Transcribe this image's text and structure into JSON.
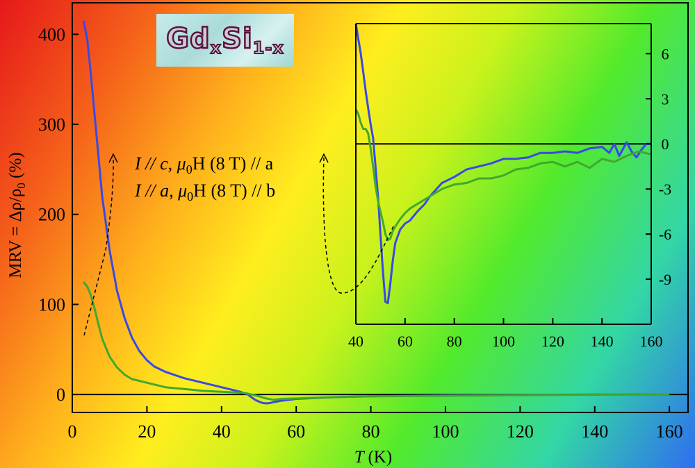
{
  "colors": {
    "blue": "#3a49e4",
    "green": "#41a82e",
    "axis": "#000000"
  },
  "logo": {
    "element": "GdxSi1-x",
    "main1": "Gd",
    "sub1": "x",
    "main2": "Si",
    "sub2": "1-x"
  },
  "chart_data": [
    {
      "id": "main",
      "type": "line",
      "xlabel": "T (K)",
      "ylabel": "MRV = Δρ/ρ0 (%)",
      "xlim": [
        0,
        165
      ],
      "ylim": [
        -20,
        435
      ],
      "xticks": [
        0,
        20,
        40,
        60,
        80,
        100,
        120,
        140,
        160
      ],
      "yticks": [
        0,
        100,
        200,
        300,
        400
      ],
      "zero_line": 0,
      "legend": [
        {
          "series": "blue",
          "pre": "I // c, ",
          "mu": "μ",
          "sub": "0",
          "post": "H (8 T) // a"
        },
        {
          "series": "green",
          "pre": "I // a, ",
          "mu": "μ",
          "sub": "0",
          "post": "H (8 T) // b"
        }
      ],
      "series": [
        {
          "name": "I // c, μ0H (8 T) // a",
          "color": "blue",
          "x": [
            3,
            4,
            5,
            6,
            7,
            8,
            10,
            12,
            14,
            16,
            18,
            20,
            22,
            25,
            30,
            35,
            40,
            45,
            47,
            48,
            49,
            50,
            51,
            52,
            53,
            54,
            56,
            60,
            70,
            80,
            100,
            120,
            140,
            160
          ],
          "y": [
            415,
            395,
            355,
            310,
            265,
            220,
            160,
            115,
            85,
            63,
            48,
            38,
            31,
            25,
            18,
            13,
            8,
            3,
            0,
            -3,
            -6,
            -8,
            -9.5,
            -10,
            -9.5,
            -8.5,
            -7,
            -5,
            -3,
            -2,
            -1,
            -0.5,
            -0.2,
            0
          ]
        },
        {
          "name": "I // a, μ0H (8 T) // b",
          "color": "green",
          "x": [
            3,
            4,
            5,
            6,
            7,
            8,
            10,
            12,
            14,
            16,
            18,
            20,
            22,
            25,
            30,
            35,
            40,
            45,
            47,
            48,
            50,
            52,
            54,
            56,
            60,
            70,
            80,
            100,
            120,
            140,
            160
          ],
          "y": [
            125,
            120,
            110,
            95,
            78,
            62,
            42,
            30,
            22,
            17,
            15,
            13,
            11,
            8,
            6,
            4,
            3,
            2,
            1,
            0,
            -2,
            -4.5,
            -6,
            -5,
            -4.5,
            -3,
            -2,
            -1.5,
            -0.8,
            -0.3,
            0
          ]
        }
      ]
    },
    {
      "id": "inset",
      "type": "line",
      "xlim": [
        40,
        160
      ],
      "ylim": [
        -12,
        8
      ],
      "xticks": [
        40,
        60,
        80,
        100,
        120,
        140,
        160
      ],
      "yticks": [
        6,
        3,
        0,
        -3,
        -6,
        -9
      ],
      "zero_line": 0,
      "series": [
        {
          "name": "I // c, μ0H (8 T) // a",
          "color": "blue",
          "x": [
            40,
            41,
            42,
            43,
            44,
            45,
            46,
            47,
            48,
            49,
            50,
            51,
            52,
            53,
            54,
            55,
            56,
            58,
            60,
            62,
            65,
            68,
            70,
            75,
            80,
            85,
            90,
            95,
            100,
            105,
            110,
            115,
            120,
            125,
            130,
            135,
            140,
            143,
            145,
            147,
            150,
            152,
            154,
            156,
            158,
            160
          ],
          "y": [
            8,
            7,
            6,
            4.8,
            3.5,
            2.4,
            1.3,
            0.4,
            -1.5,
            -3.5,
            -6,
            -8.5,
            -10.5,
            -10.6,
            -9.3,
            -7.8,
            -6.6,
            -5.7,
            -5.3,
            -5.1,
            -4.5,
            -4.0,
            -3.5,
            -2.6,
            -2.2,
            -1.7,
            -1.5,
            -1.3,
            -1.0,
            -1.0,
            -0.9,
            -0.6,
            -0.6,
            -0.5,
            -0.6,
            -0.3,
            -0.2,
            -0.6,
            0.0,
            -0.8,
            0.1,
            -0.5,
            -0.9,
            -0.4,
            0.0,
            0.0
          ]
        },
        {
          "name": "I // a, μ0H (8 T) // b",
          "color": "green",
          "x": [
            40,
            41,
            42,
            43,
            44,
            45,
            46,
            47,
            48,
            49,
            50,
            51,
            52,
            53,
            54,
            55,
            56,
            58,
            60,
            62,
            65,
            68,
            70,
            75,
            80,
            85,
            90,
            95,
            100,
            105,
            110,
            115,
            120,
            125,
            130,
            135,
            140,
            145,
            150,
            155,
            160
          ],
          "y": [
            2.3,
            2.0,
            1.4,
            1.0,
            1.0,
            0.7,
            -0.3,
            -1.5,
            -2.8,
            -3.8,
            -4.5,
            -5.2,
            -6.0,
            -6.4,
            -6.3,
            -5.8,
            -5.5,
            -5.0,
            -4.6,
            -4.3,
            -4.0,
            -3.7,
            -3.5,
            -3.0,
            -2.7,
            -2.6,
            -2.3,
            -2.3,
            -2.1,
            -1.7,
            -1.6,
            -1.3,
            -1.2,
            -1.5,
            -1.2,
            -1.6,
            -1.0,
            -1.2,
            -0.8,
            -0.5,
            -0.7
          ]
        }
      ]
    }
  ]
}
